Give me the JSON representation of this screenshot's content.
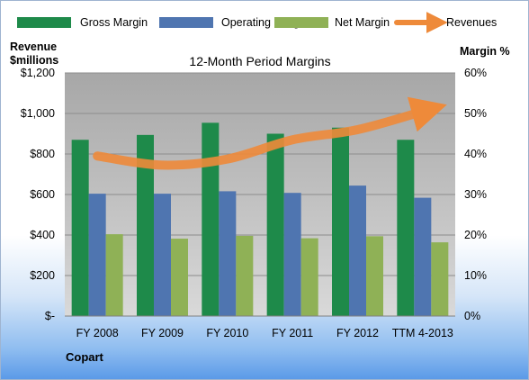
{
  "chart_data": {
    "type": "bar",
    "title": "12-Month Period Margins",
    "company": "Copart",
    "left_axis_label": [
      "Revenue",
      "$millions"
    ],
    "right_axis_label": "Margin %",
    "left_ticks": [
      "$-",
      "$200",
      "$400",
      "$600",
      "$800",
      "$1,000",
      "$1,200"
    ],
    "right_ticks": [
      "0%",
      "10%",
      "20%",
      "30%",
      "40%",
      "50%",
      "60%"
    ],
    "ylim_margin": [
      0,
      60
    ],
    "ylim_revenue": [
      0,
      1200
    ],
    "categories": [
      "FY 2008",
      "FY 2009",
      "FY 2010",
      "FY 2011",
      "FY 2012",
      "TTM 4-2013"
    ],
    "series": [
      {
        "name": "Gross Margin",
        "axis": "right",
        "color": "#1e8a4a",
        "values": [
          43.5,
          44.7,
          47.7,
          45.0,
          46.5,
          43.5
        ]
      },
      {
        "name": "Operating Margin",
        "axis": "right",
        "color": "#4f75b0",
        "values": [
          30.2,
          30.2,
          30.8,
          30.4,
          32.2,
          29.2
        ]
      },
      {
        "name": "Net Margin",
        "axis": "right",
        "color": "#8fb156",
        "values": [
          20.2,
          19.1,
          19.8,
          19.2,
          19.7,
          18.2
        ]
      },
      {
        "name": "Revenues",
        "axis": "left",
        "type": "line",
        "color": "#ee8a3a",
        "values": [
          790,
          745,
          775,
          870,
          920,
          1010
        ]
      }
    ],
    "grid": true,
    "legend_position": "top"
  }
}
